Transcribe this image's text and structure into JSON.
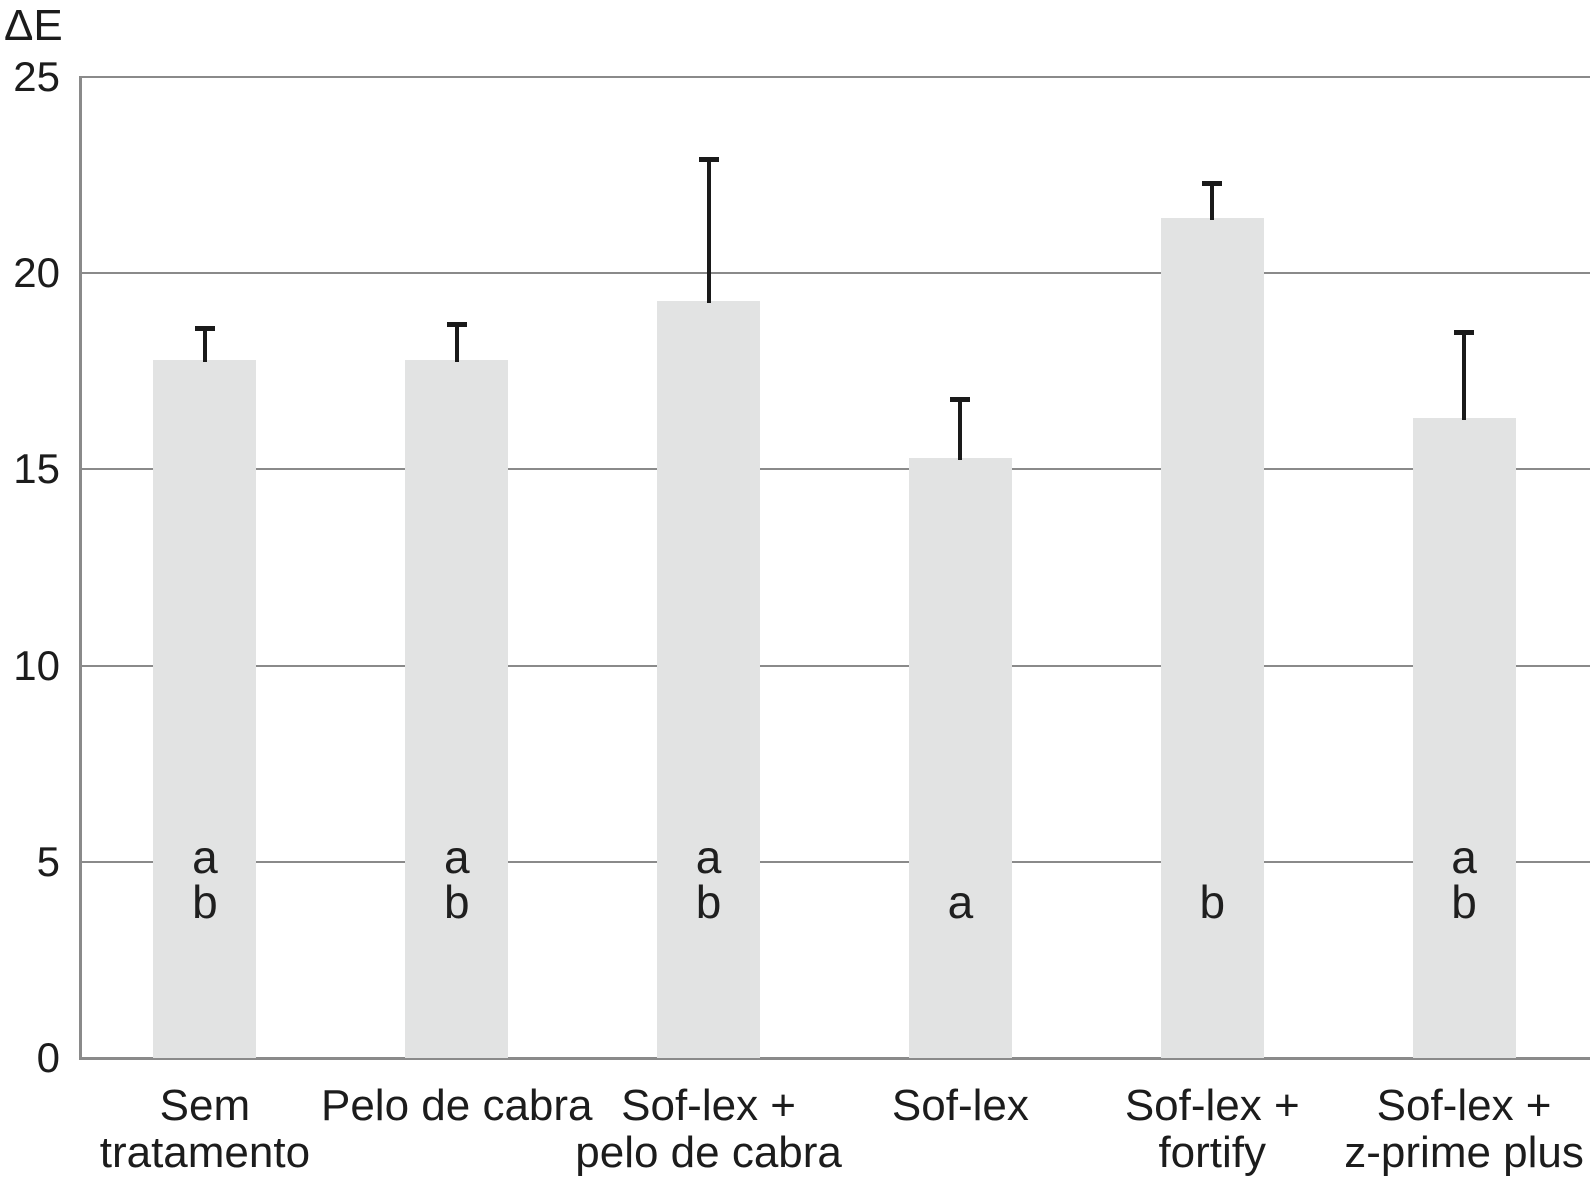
{
  "colors": {
    "background": "#ffffff",
    "bar_fill": "#e2e3e3",
    "gridline": "#8a8a8a",
    "axis": "#8a8a8a",
    "error_bar": "#1a1a1a",
    "text": "#1c1c1c"
  },
  "chart_data": {
    "type": "bar",
    "title": "",
    "xlabel": "",
    "ylabel": "ΔE",
    "ylim": [
      0,
      25
    ],
    "yticks": [
      0,
      5,
      10,
      15,
      20,
      25
    ],
    "grid": true,
    "legend_position": "none",
    "categories": [
      "Sem tratamento",
      "Pelo de cabra",
      "Sof-lex + pelo de cabra",
      "Sof-lex",
      "Sof-lex + fortify",
      "Sof-lex + z-prime plus"
    ],
    "category_label_lines": [
      [
        "Sem",
        "tratamento"
      ],
      [
        "Pelo de cabra"
      ],
      [
        "Sof-lex +",
        "pelo de cabra"
      ],
      [
        "Sof-lex"
      ],
      [
        "Sof-lex +",
        "fortify"
      ],
      [
        "Sof-lex +",
        "z-prime plus"
      ]
    ],
    "series": [
      {
        "name": "ΔE",
        "values": [
          17.8,
          17.8,
          19.3,
          15.3,
          21.4,
          16.3
        ],
        "error_upper": [
          0.8,
          0.9,
          3.6,
          1.5,
          0.9,
          2.2
        ]
      }
    ],
    "significance_letters": [
      [
        "a",
        "b"
      ],
      [
        "a",
        "b"
      ],
      [
        "a",
        "b"
      ],
      [
        "a"
      ],
      [
        "b"
      ],
      [
        "a",
        "b"
      ]
    ]
  }
}
